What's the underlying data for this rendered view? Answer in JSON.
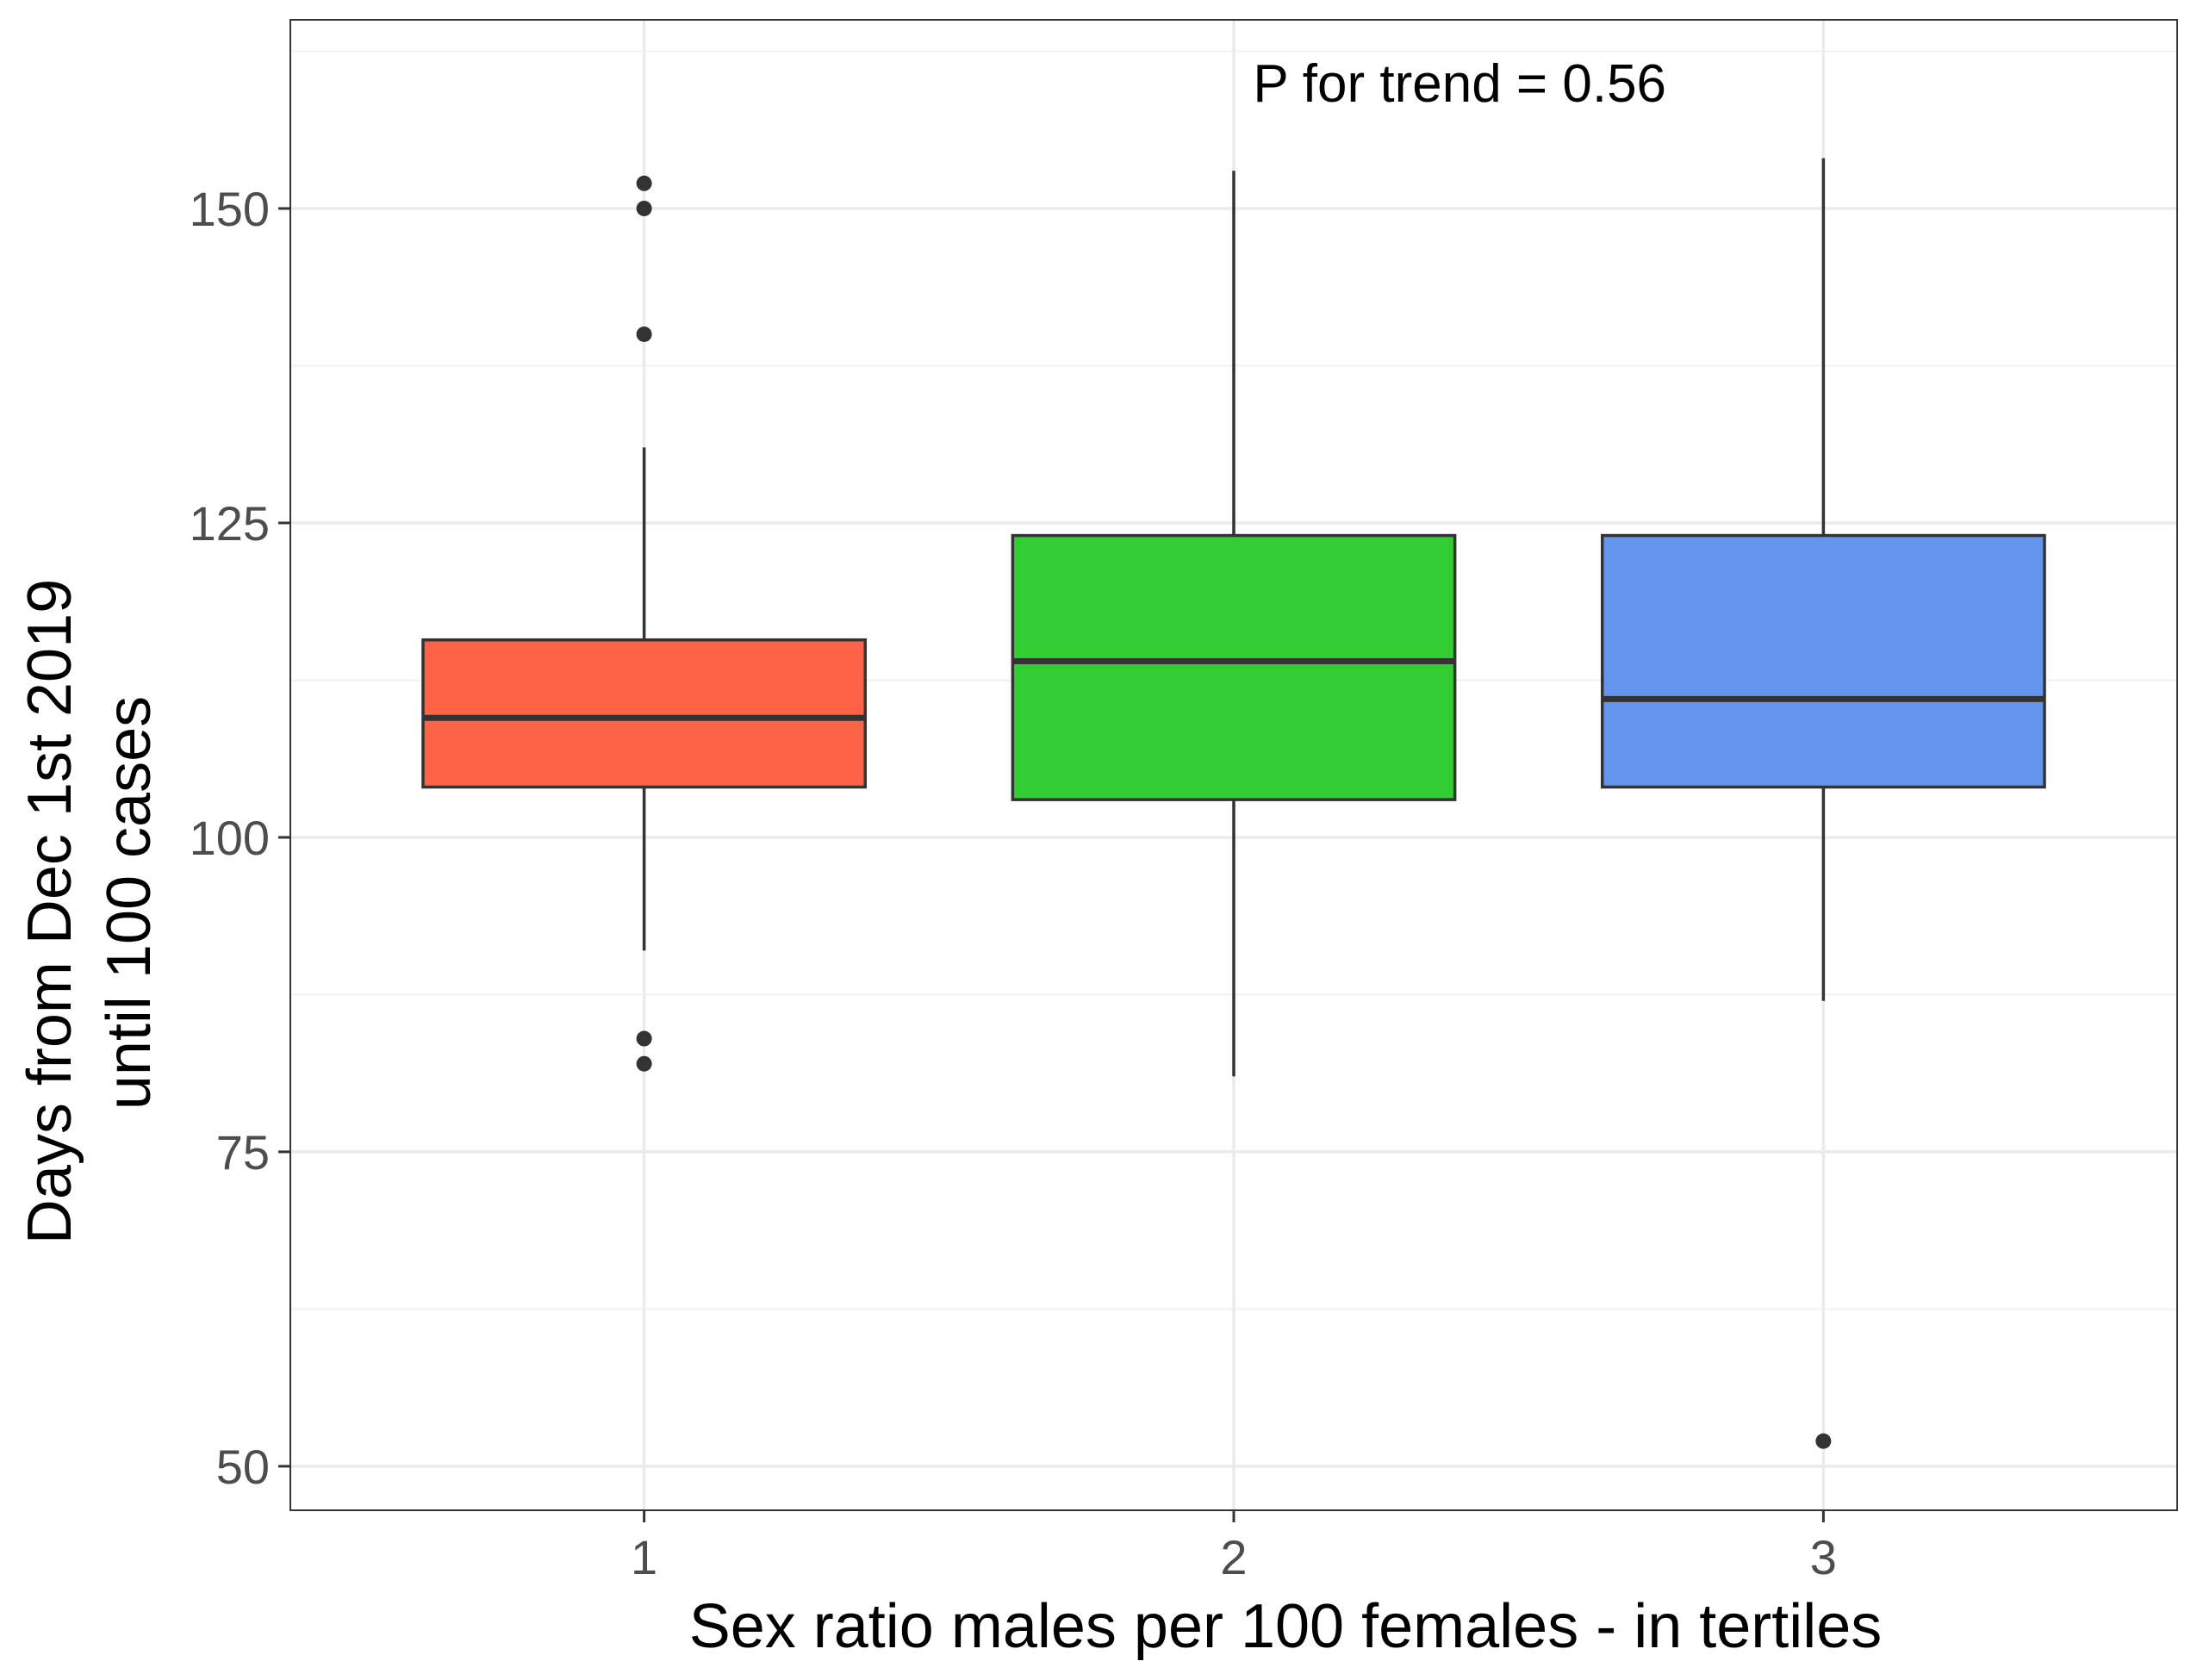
{
  "chart_data": {
    "type": "boxplot",
    "title": "",
    "xlabel": "Sex ratio males per 100 females - in tertiles",
    "ylabel_lines": [
      "Days from Dec 1st 2019",
      "until 100 cases"
    ],
    "categories": [
      "1",
      "2",
      "3"
    ],
    "ylim": [
      46.5,
      165
    ],
    "xlim": [
      0.4,
      3.6
    ],
    "y_ticks": [
      50,
      75,
      100,
      125,
      150
    ],
    "y_tick_labels": [
      "50",
      "75",
      "100",
      "125",
      "150"
    ],
    "y_minor_ticks": [
      62.5,
      87.5,
      112.5,
      137.5,
      162.5
    ],
    "grid": true,
    "annotation": {
      "text": "P for trend = 0.56",
      "x": 2.5,
      "y": 160
    },
    "boxes": [
      {
        "category": "1",
        "whisker_low": 91,
        "q1": 104,
        "median": 109.5,
        "q3": 115.7,
        "whisker_high": 131,
        "outliers": [
          82,
          84,
          140,
          150,
          152
        ],
        "color": "#FF6347"
      },
      {
        "category": "2",
        "whisker_low": 81,
        "q1": 103,
        "median": 114,
        "q3": 124,
        "whisker_high": 153,
        "outliers": [],
        "color": "#32CD32"
      },
      {
        "category": "3",
        "whisker_low": 87,
        "q1": 104,
        "median": 111,
        "q3": 124,
        "whisker_high": 154,
        "outliers": [
          52
        ],
        "color": "#6495ED"
      }
    ]
  }
}
